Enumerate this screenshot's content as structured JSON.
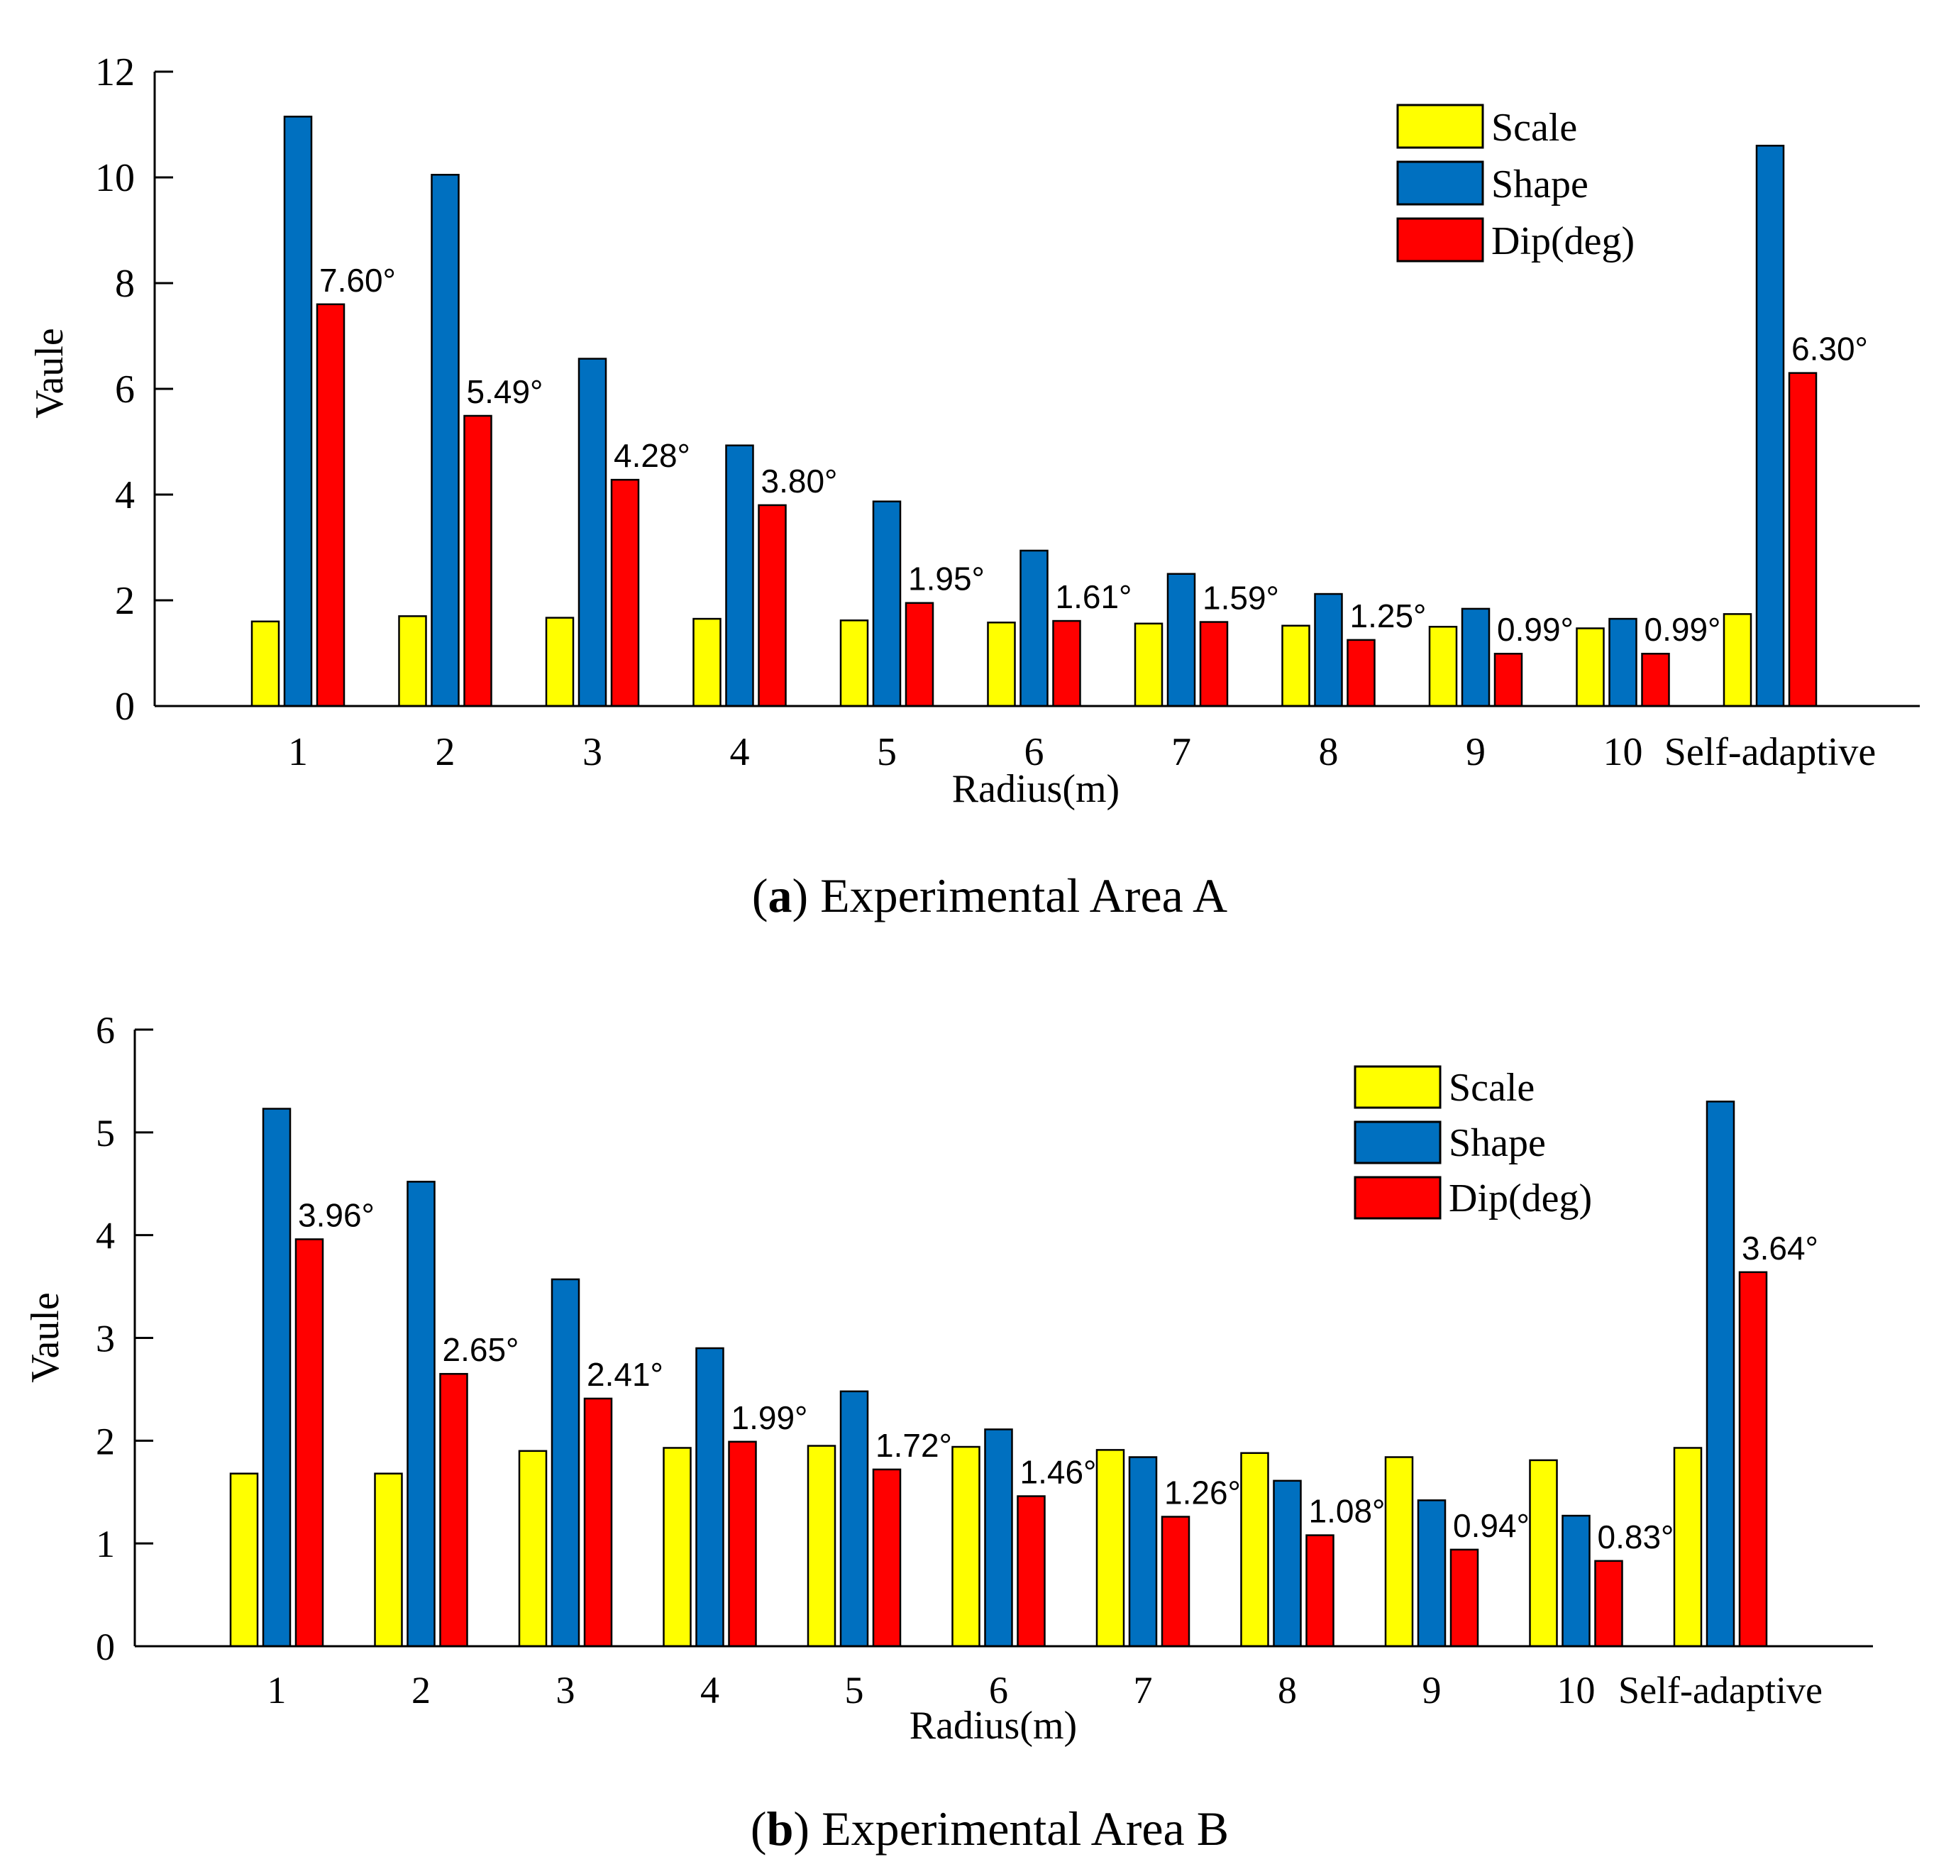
{
  "colors": {
    "scale": "#ffff00",
    "shape": "#0070c0",
    "dip": "#ff0000",
    "axis": "#000000"
  },
  "chart_data": [
    {
      "type": "bar",
      "panel_label": "a",
      "caption": "Experimental Area A",
      "xlabel": "Radius(m)",
      "ylabel": "Vaule",
      "ylim": [
        0,
        12
      ],
      "yticks": [
        "0",
        "2",
        "4",
        "6",
        "8",
        "10",
        "12"
      ],
      "grid": false,
      "legend_position": "top-right",
      "categories": [
        "1",
        "2",
        "3",
        "4",
        "5",
        "6",
        "7",
        "8",
        "9",
        "10",
        "Self-adaptive"
      ],
      "series": [
        {
          "name": "Scale",
          "values": [
            1.6,
            1.7,
            1.67,
            1.65,
            1.62,
            1.58,
            1.56,
            1.52,
            1.5,
            1.47,
            1.74
          ]
        },
        {
          "name": "Shape",
          "values": [
            11.15,
            10.05,
            6.57,
            4.93,
            3.87,
            2.94,
            2.5,
            2.12,
            1.84,
            1.65,
            10.6
          ]
        },
        {
          "name": "Dip(deg)",
          "values": [
            7.6,
            5.49,
            4.28,
            3.8,
            1.95,
            1.61,
            1.59,
            1.25,
            0.99,
            0.99,
            6.3
          ]
        }
      ],
      "data_labels": [
        "7.60°",
        "5.49°",
        "4.28°",
        "3.80°",
        "1.95°",
        "1.61°",
        "1.59°",
        "1.25°",
        "0.99°",
        "0.99°",
        "6.30°"
      ]
    },
    {
      "type": "bar",
      "panel_label": "b",
      "caption": "Experimental Area B",
      "xlabel": "Radius(m)",
      "ylabel": "Vaule",
      "ylim": [
        0,
        6
      ],
      "yticks": [
        "0",
        "1",
        "2",
        "3",
        "4",
        "5",
        "6"
      ],
      "grid": false,
      "legend_position": "top-right",
      "categories": [
        "1",
        "2",
        "3",
        "4",
        "5",
        "6",
        "7",
        "8",
        "9",
        "10",
        "Self-adaptive"
      ],
      "series": [
        {
          "name": "Scale",
          "values": [
            1.68,
            1.68,
            1.9,
            1.93,
            1.95,
            1.94,
            1.91,
            1.88,
            1.84,
            1.81,
            1.93
          ]
        },
        {
          "name": "Shape",
          "values": [
            5.23,
            4.52,
            3.57,
            2.9,
            2.48,
            2.11,
            1.84,
            1.61,
            1.42,
            1.27,
            5.3
          ]
        },
        {
          "name": "Dip(deg)",
          "values": [
            3.96,
            2.65,
            2.41,
            1.99,
            1.72,
            1.46,
            1.26,
            1.08,
            0.94,
            0.83,
            3.64
          ]
        }
      ],
      "data_labels": [
        "3.96°",
        "2.65°",
        "2.41°",
        "1.99°",
        "1.72°",
        "1.46°",
        "1.26°",
        "1.08°",
        "0.94°",
        "0.83°",
        "3.64°"
      ]
    }
  ]
}
